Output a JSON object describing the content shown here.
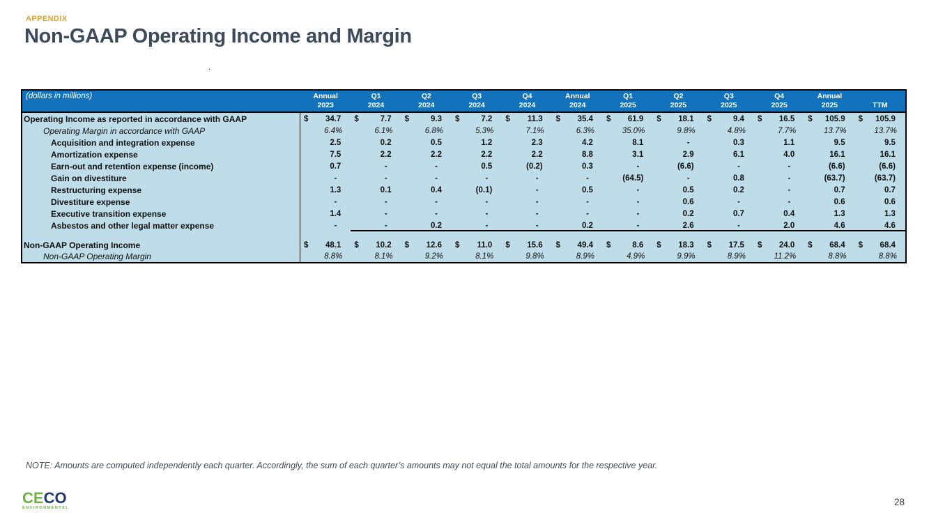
{
  "slide": {
    "eyebrow": "APPENDIX",
    "title": "Non-GAAP Operating Income and Margin",
    "stray_mark": ".",
    "note": "NOTE: Amounts are computed independently each quarter. Accordingly, the sum of each quarter’s amounts may not equal the total amounts for the respective year.",
    "page_number": "28"
  },
  "logo": {
    "text_green": "CE",
    "text_navy": "CO",
    "tagline": "ENVIRONMENTAL"
  },
  "colors": {
    "header_bg": "#1273BC",
    "body_bg": "#BEDDE9",
    "title_text": "#3D4A5C",
    "eyebrow_text": "#DBA429",
    "logo_green": "#6DB33F",
    "logo_navy": "#203A6B"
  },
  "table": {
    "unit_label": "(dollars in millions)",
    "currency_symbol": "$",
    "columns": [
      {
        "period": "Annual",
        "year": "2023"
      },
      {
        "period": "Q1",
        "year": "2024"
      },
      {
        "period": "Q2",
        "year": "2024"
      },
      {
        "period": "Q3",
        "year": "2024"
      },
      {
        "period": "Q4",
        "year": "2024"
      },
      {
        "period": "Annual",
        "year": "2024"
      },
      {
        "period": "Q1",
        "year": "2025"
      },
      {
        "period": "Q2",
        "year": "2025"
      },
      {
        "period": "Q3",
        "year": "2025"
      },
      {
        "period": "Q4",
        "year": "2025"
      },
      {
        "period": "Annual",
        "year": "2025"
      },
      {
        "period": "",
        "year": "TTM"
      }
    ],
    "rows": [
      {
        "label": "Operating Income as reported in accordance with GAAP",
        "style": "total",
        "dollar": true,
        "values": [
          "34.7",
          "7.7",
          "9.3",
          "7.2",
          "11.3",
          "35.4",
          "61.9",
          "18.1",
          "9.4",
          "16.5",
          "105.9",
          "105.9"
        ]
      },
      {
        "label": "Operating Margin in accordance with GAAP",
        "style": "margin",
        "dollar": false,
        "values": [
          "6.4%",
          "6.1%",
          "6.8%",
          "5.3%",
          "7.1%",
          "6.3%",
          "35.0%",
          "9.8%",
          "4.8%",
          "7.7%",
          "13.7%",
          "13.7%"
        ]
      },
      {
        "label": "Acquisition and integration expense",
        "style": "adjustment",
        "dollar": false,
        "values": [
          "2.5",
          "0.2",
          "0.5",
          "1.2",
          "2.3",
          "4.2",
          "8.1",
          "-",
          "0.3",
          "1.1",
          "9.5",
          "9.5"
        ]
      },
      {
        "label": "Amortization expense",
        "style": "adjustment",
        "dollar": false,
        "values": [
          "7.5",
          "2.2",
          "2.2",
          "2.2",
          "2.2",
          "8.8",
          "3.1",
          "2.9",
          "6.1",
          "4.0",
          "16.1",
          "16.1"
        ]
      },
      {
        "label": "Earn-out and retention expense (income)",
        "style": "adjustment",
        "dollar": false,
        "values": [
          "0.7",
          "-",
          "-",
          "0.5",
          "(0.2)",
          "0.3",
          "-",
          "(6.6)",
          "-",
          "-",
          "(6.6)",
          "(6.6)"
        ]
      },
      {
        "label": "Gain on divestiture",
        "style": "adjustment",
        "dollar": false,
        "values": [
          "-",
          "-",
          "-",
          "-",
          "-",
          "-",
          "(64.5)",
          "-",
          "0.8",
          "-",
          "(63.7)",
          "(63.7)"
        ]
      },
      {
        "label": "Restructuring expense",
        "style": "adjustment",
        "dollar": false,
        "values": [
          "1.3",
          "0.1",
          "0.4",
          "(0.1)",
          "-",
          "0.5",
          "-",
          "0.5",
          "0.2",
          "-",
          "0.7",
          "0.7"
        ]
      },
      {
        "label": "Divestiture expense",
        "style": "adjustment",
        "dollar": false,
        "values": [
          "-",
          "-",
          "-",
          "-",
          "-",
          "-",
          "-",
          "0.6",
          "-",
          "-",
          "0.6",
          "0.6"
        ]
      },
      {
        "label": "Executive transition expense",
        "style": "adjustment",
        "dollar": false,
        "values": [
          "1.4",
          "-",
          "-",
          "-",
          "-",
          "-",
          "-",
          "0.2",
          "0.7",
          "0.4",
          "1.3",
          "1.3"
        ]
      },
      {
        "label": "Asbestos and other legal matter expense",
        "style": "adjustment",
        "dollar": false,
        "sumline": true,
        "values": [
          "-",
          "-",
          "0.2",
          "-",
          "-",
          "0.2",
          "-",
          "2.6",
          "-",
          "2.0",
          "4.6",
          "4.6"
        ]
      },
      {
        "type": "spacer"
      },
      {
        "label": "Non-GAAP Operating Income",
        "style": "total small",
        "dollar": true,
        "values": [
          "48.1",
          "10.2",
          "12.6",
          "11.0",
          "15.6",
          "49.4",
          "8.6",
          "18.3",
          "17.5",
          "24.0",
          "68.4",
          "68.4"
        ]
      },
      {
        "label": "Non-GAAP Operating Margin",
        "style": "margin small",
        "dollar": false,
        "values": [
          "8.8%",
          "8.1%",
          "9.2%",
          "8.1%",
          "9.8%",
          "8.9%",
          "4.9%",
          "9.9%",
          "8.9%",
          "11.2%",
          "8.8%",
          "8.8%"
        ]
      }
    ]
  }
}
